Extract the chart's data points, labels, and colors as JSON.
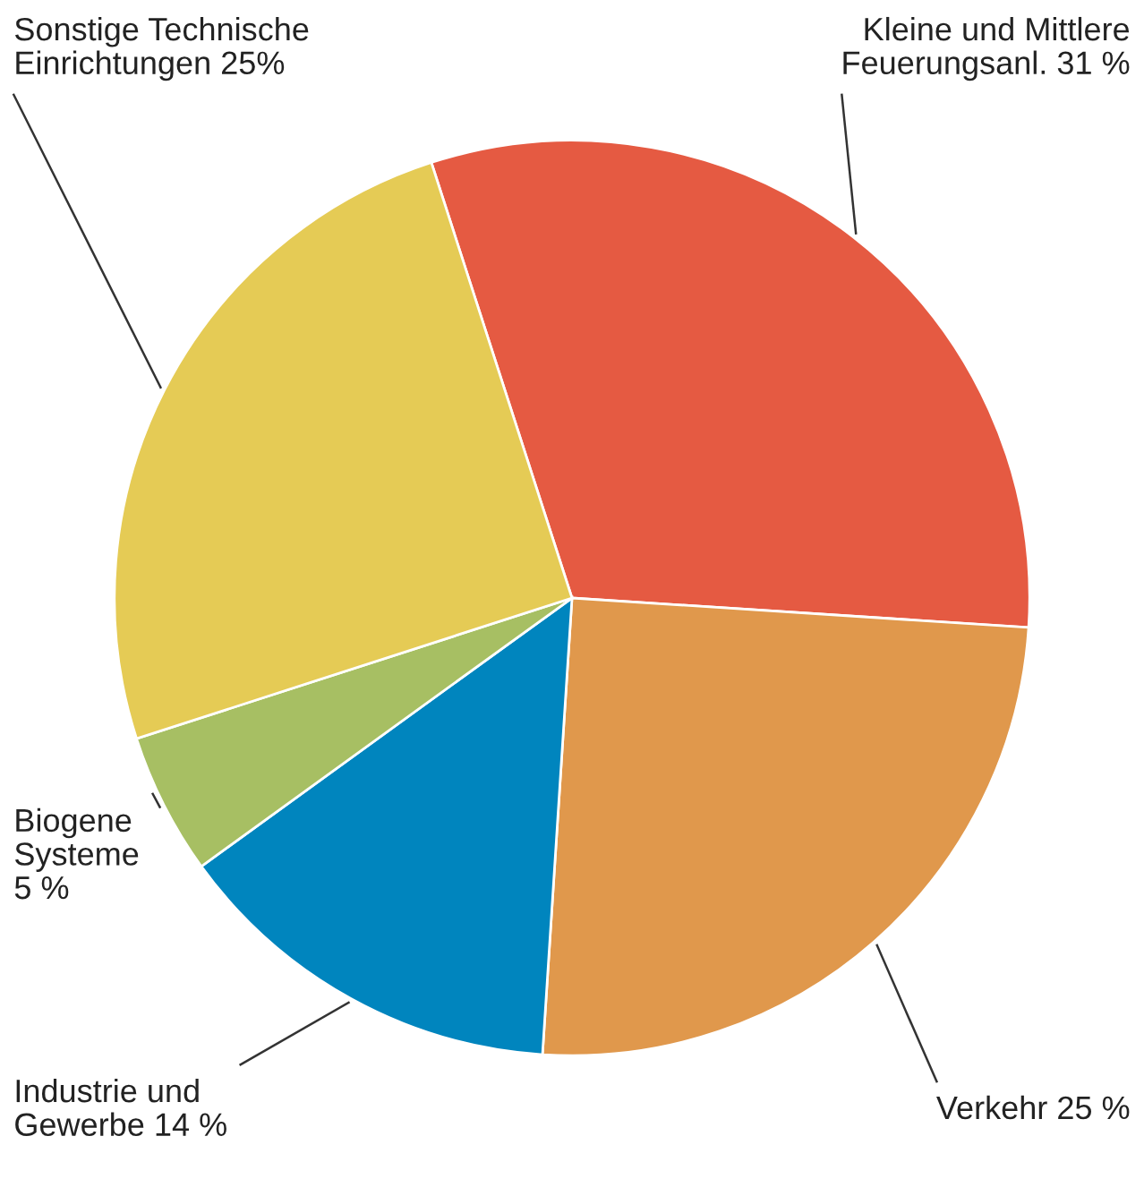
{
  "chart_data": {
    "type": "pie",
    "categories": [
      "Kleine und Mittlere\nFeuerungsanl. 31 %",
      "Verkehr 25 %",
      "Industrie und\nGewerbe 14 %",
      "Biogene\nSysteme\n5 %",
      "Sonstige Technische\nEinrichtungen 25%"
    ],
    "values": [
      31,
      25,
      14,
      5,
      25
    ],
    "colors": [
      "#e55a42",
      "#e0984c",
      "#0085be",
      "#a7bf63",
      "#e5cb55"
    ]
  }
}
